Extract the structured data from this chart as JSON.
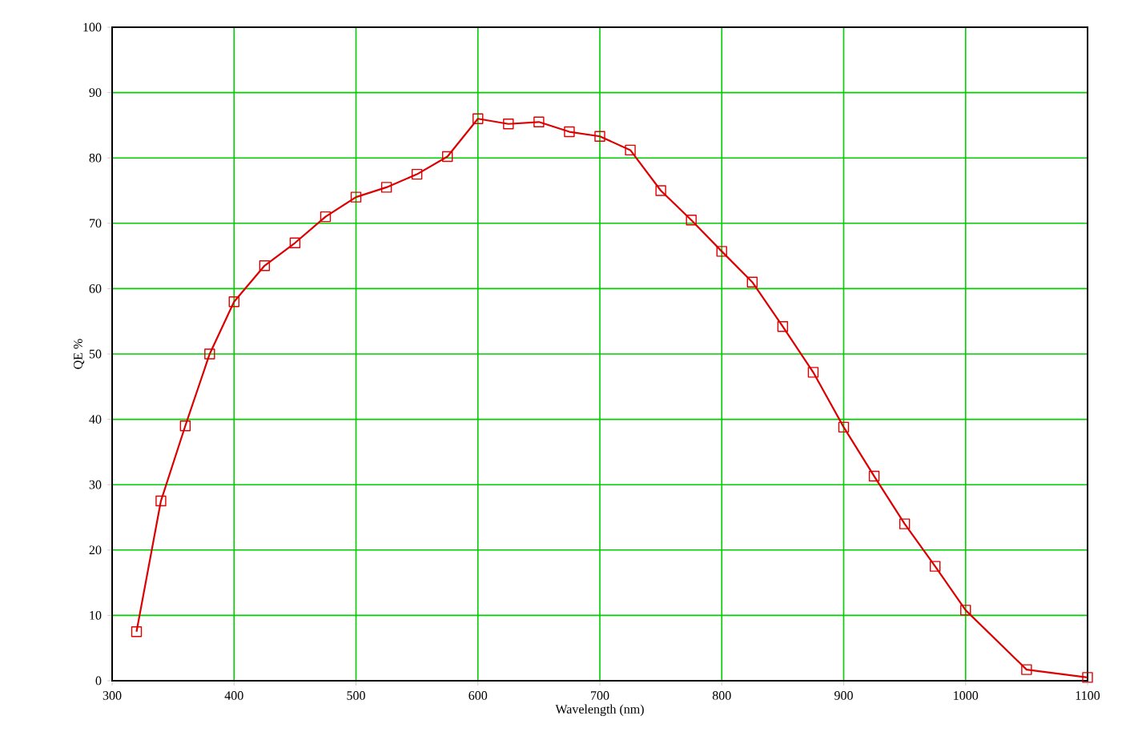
{
  "chart_data": {
    "type": "line",
    "xlabel": "Wavelength (nm)",
    "ylabel": "QE %",
    "x": [
      320,
      340,
      360,
      380,
      400,
      425,
      450,
      475,
      500,
      525,
      550,
      575,
      600,
      625,
      650,
      675,
      700,
      725,
      750,
      775,
      800,
      825,
      850,
      875,
      900,
      925,
      950,
      975,
      1000,
      1050,
      1100
    ],
    "series": [
      {
        "color": "#dd0000",
        "values": [
          7.5,
          27.5,
          39,
          50,
          58,
          63.5,
          67,
          71,
          74,
          75.5,
          77.5,
          80.2,
          86,
          85.2,
          85.5,
          84,
          83.3,
          81.2,
          75,
          70.5,
          65.7,
          61,
          54.2,
          47.2,
          38.8,
          31.3,
          24,
          17.5,
          10.8,
          1.7,
          0.5
        ]
      }
    ],
    "xlim": [
      300,
      1100
    ],
    "ylim": [
      0,
      100
    ],
    "xticks": [
      300,
      400,
      500,
      600,
      700,
      800,
      900,
      1000,
      1100
    ],
    "yticks": [
      0,
      10,
      20,
      30,
      40,
      50,
      60,
      70,
      80,
      90,
      100
    ],
    "grid": true,
    "marker": "square",
    "line_style": "solid"
  }
}
